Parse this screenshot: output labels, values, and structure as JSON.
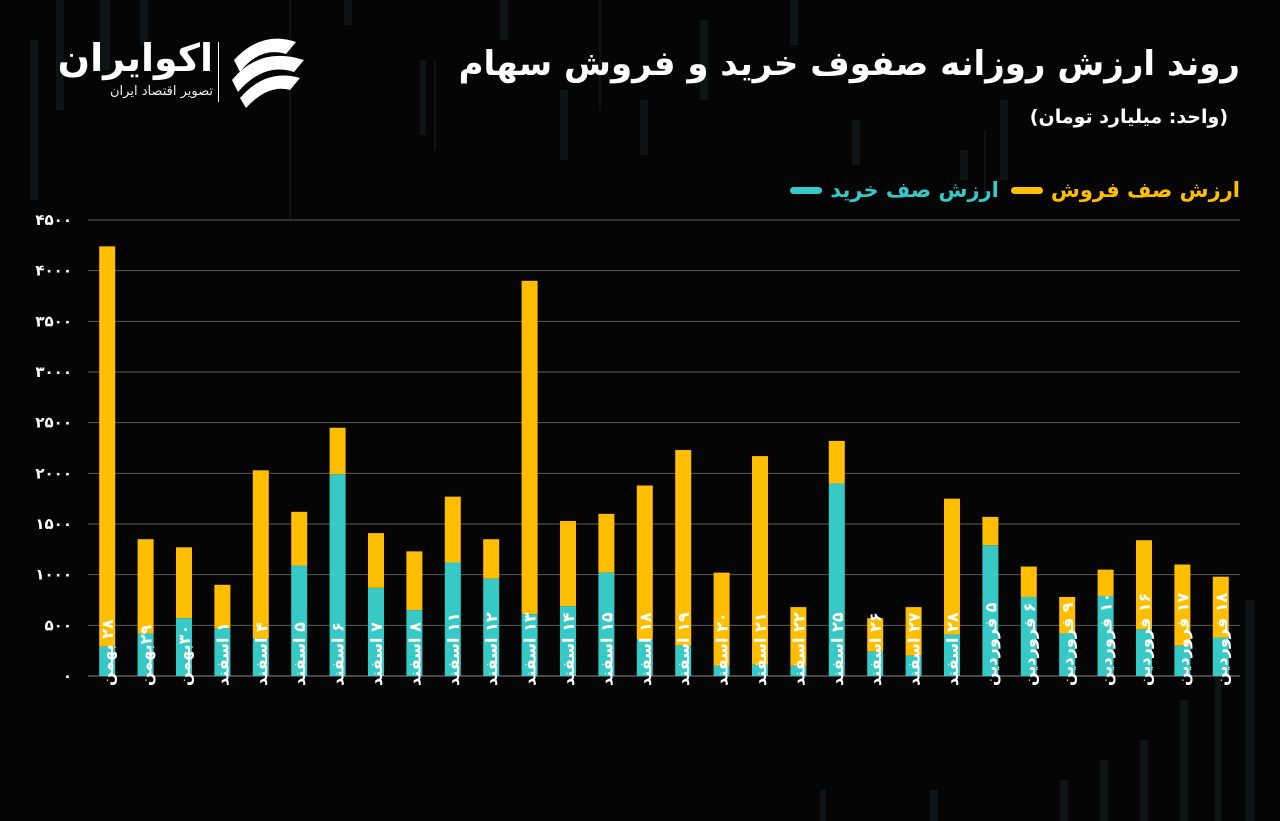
{
  "header": {
    "title": "روند ارزش روزانه صفوف خرید و فروش سهام",
    "subtitle": "(واحد: میلیارد تومان)"
  },
  "brand": {
    "name": "اکوایران",
    "tagline": "تصویر اقتصاد ایران",
    "logo_icon": "ecoiran-swoosh-icon"
  },
  "legend": {
    "buy_label": "ارزش صف خرید",
    "sell_label": "ارزش صف فروش"
  },
  "colors": {
    "background": "#050505",
    "buy": "#36c9c6",
    "sell": "#ffbf00",
    "grid": "#5a5a5a",
    "text": "#ffffff"
  },
  "chart_data": {
    "type": "bar",
    "stacked": true,
    "ylim": [
      0,
      4500
    ],
    "yticks": [
      "۰",
      "۵۰۰",
      "۱۰۰۰",
      "۱۵۰۰",
      "۲۰۰۰",
      "۲۵۰۰",
      "۳۰۰۰",
      "۳۵۰۰",
      "۴۰۰۰",
      "۴۵۰۰"
    ],
    "ytick_values": [
      0,
      500,
      1000,
      1500,
      2000,
      2500,
      3000,
      3500,
      4000,
      4500
    ],
    "grid": true,
    "legend_position": "top-right",
    "categories": [
      "۲۸ بهمن",
      "۲۹بهمن",
      "۳۰بهمن",
      "۱ اسفند",
      "۴ اسفند",
      "۵ اسفند",
      "۶ اسفند",
      "۷ اسفند",
      "۸ اسفند",
      "۱۱ اسفند",
      "۱۲ اسفند",
      "۱۳ اسفند",
      "۱۴ اسفند",
      "۱۵ اسفند",
      "۱۸ اسفند",
      "۱۹ اسفند",
      "۲۰ اسفند",
      "۲۱ اسفند",
      "۲۲ اسفند",
      "۲۵ اسفند",
      "۲۶ اسفند",
      "۲۷ اسفند",
      "۲۸ اسفند",
      "۵ فروردین",
      "۶ فروردین",
      "۹ فروردین",
      "۱۰ فروردین",
      "۱۶ فروردین",
      "۱۷ فروردین",
      "۱۸ فروردین"
    ],
    "series": [
      {
        "name": "ارزش صف خرید",
        "values": [
          290,
          420,
          570,
          470,
          370,
          1090,
          1990,
          870,
          650,
          1120,
          960,
          610,
          690,
          1020,
          360,
          300,
          100,
          110,
          100,
          1900,
          240,
          200,
          410,
          1290,
          780,
          420,
          790,
          460,
          300,
          380
        ]
      },
      {
        "name": "ارزش صف فروش",
        "values": [
          3950,
          930,
          700,
          430,
          1660,
          530,
          460,
          540,
          580,
          650,
          390,
          3290,
          840,
          580,
          1520,
          1930,
          920,
          2060,
          580,
          420,
          330,
          480,
          1340,
          280,
          300,
          360,
          260,
          880,
          800,
          600
        ]
      }
    ]
  }
}
